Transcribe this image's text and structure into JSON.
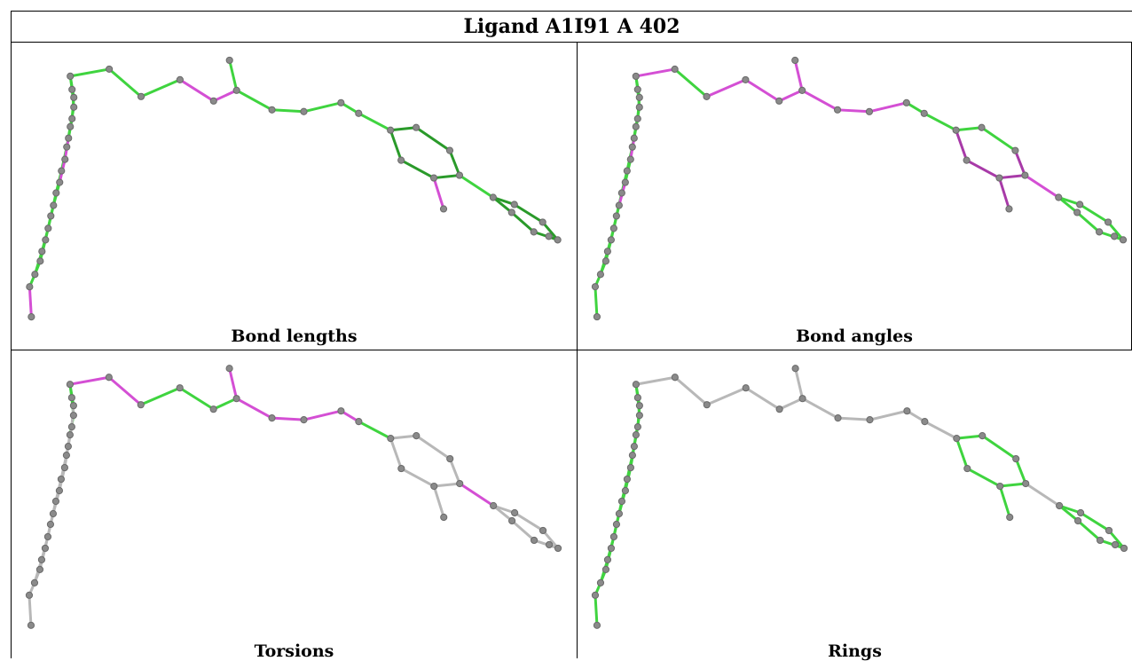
{
  "title": "Ligand A1I91 A 402",
  "panels": [
    {
      "caption": "Bond lengths"
    },
    {
      "caption": "Bond angles"
    },
    {
      "caption": "Torsions"
    },
    {
      "caption": "Rings"
    }
  ],
  "colors": {
    "green": "#3fd43f",
    "dark_green": "#2a9a2a",
    "magenta": "#d44fd4",
    "grey": "#b8b8b8",
    "atom": "#8a8a8a"
  }
}
